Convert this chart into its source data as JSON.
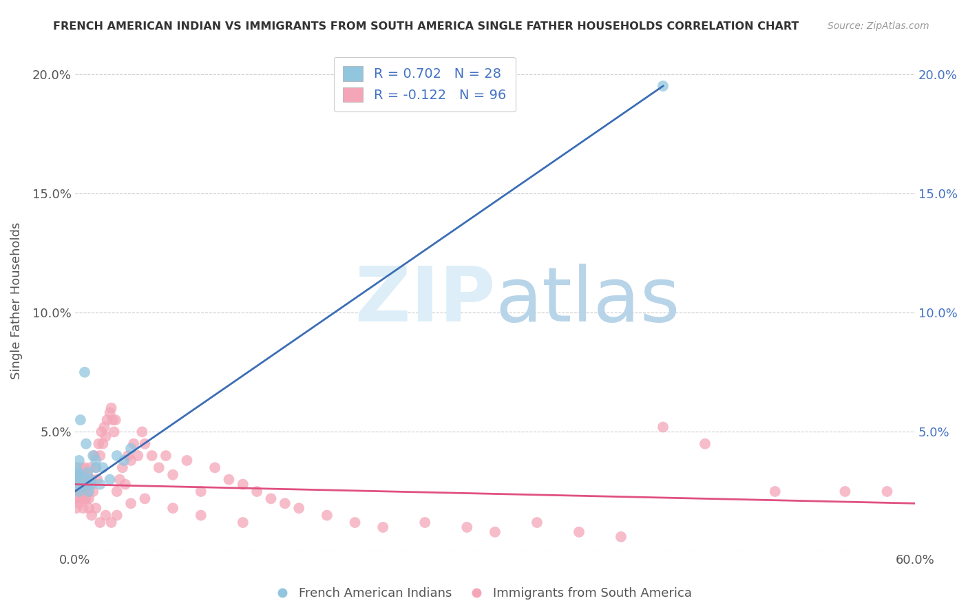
{
  "title": "FRENCH AMERICAN INDIAN VS IMMIGRANTS FROM SOUTH AMERICA SINGLE FATHER HOUSEHOLDS CORRELATION CHART",
  "source": "Source: ZipAtlas.com",
  "ylabel": "Single Father Households",
  "xlabel": "",
  "watermark_zip": "ZIP",
  "watermark_atlas": "atlas",
  "xlim": [
    0.0,
    0.6
  ],
  "ylim": [
    0.0,
    0.21
  ],
  "xticks": [
    0.0,
    0.1,
    0.2,
    0.3,
    0.4,
    0.5,
    0.6
  ],
  "xticklabels": [
    "0.0%",
    "",
    "",
    "",
    "",
    "",
    "60.0%"
  ],
  "yticks": [
    0.0,
    0.05,
    0.1,
    0.15,
    0.2
  ],
  "yticklabels_left": [
    "",
    "5.0%",
    "10.0%",
    "15.0%",
    "20.0%"
  ],
  "yticklabels_right": [
    "",
    "5.0%",
    "10.0%",
    "15.0%",
    "20.0%"
  ],
  "blue_R": 0.702,
  "blue_N": 28,
  "pink_R": -0.122,
  "pink_N": 96,
  "blue_color": "#92c5de",
  "pink_color": "#f4a6b8",
  "blue_line_color": "#3b6db5",
  "pink_line_color": "#e05080",
  "legend1_label": "French American Indians",
  "legend2_label": "Immigrants from South America",
  "blue_scatter_x": [
    0.001,
    0.001,
    0.001,
    0.002,
    0.002,
    0.003,
    0.003,
    0.003,
    0.004,
    0.005,
    0.006,
    0.007,
    0.008,
    0.009,
    0.01,
    0.01,
    0.011,
    0.012,
    0.013,
    0.015,
    0.015,
    0.018,
    0.02,
    0.025,
    0.03,
    0.035,
    0.04,
    0.42
  ],
  "blue_scatter_y": [
    0.032,
    0.035,
    0.028,
    0.03,
    0.033,
    0.025,
    0.032,
    0.038,
    0.055,
    0.027,
    0.03,
    0.075,
    0.045,
    0.033,
    0.025,
    0.028,
    0.03,
    0.028,
    0.04,
    0.035,
    0.038,
    0.028,
    0.035,
    0.03,
    0.04,
    0.038,
    0.043,
    0.195
  ],
  "pink_scatter_x": [
    0.001,
    0.001,
    0.002,
    0.002,
    0.003,
    0.003,
    0.004,
    0.004,
    0.005,
    0.005,
    0.006,
    0.006,
    0.007,
    0.007,
    0.008,
    0.008,
    0.009,
    0.009,
    0.01,
    0.01,
    0.011,
    0.012,
    0.013,
    0.014,
    0.015,
    0.016,
    0.017,
    0.018,
    0.019,
    0.02,
    0.021,
    0.022,
    0.023,
    0.025,
    0.026,
    0.027,
    0.028,
    0.029,
    0.03,
    0.032,
    0.034,
    0.036,
    0.038,
    0.04,
    0.042,
    0.045,
    0.048,
    0.05,
    0.055,
    0.06,
    0.065,
    0.07,
    0.08,
    0.09,
    0.1,
    0.11,
    0.12,
    0.13,
    0.14,
    0.15,
    0.16,
    0.18,
    0.2,
    0.22,
    0.25,
    0.28,
    0.3,
    0.33,
    0.36,
    0.39,
    0.42,
    0.45,
    0.5,
    0.55,
    0.58,
    0.001,
    0.002,
    0.003,
    0.004,
    0.005,
    0.006,
    0.007,
    0.008,
    0.009,
    0.01,
    0.012,
    0.015,
    0.018,
    0.022,
    0.026,
    0.03,
    0.04,
    0.05,
    0.07,
    0.09,
    0.12
  ],
  "pink_scatter_y": [
    0.028,
    0.022,
    0.025,
    0.032,
    0.02,
    0.03,
    0.025,
    0.035,
    0.022,
    0.028,
    0.025,
    0.032,
    0.028,
    0.035,
    0.022,
    0.03,
    0.025,
    0.032,
    0.028,
    0.022,
    0.035,
    0.03,
    0.025,
    0.04,
    0.035,
    0.03,
    0.045,
    0.04,
    0.05,
    0.045,
    0.052,
    0.048,
    0.055,
    0.058,
    0.06,
    0.055,
    0.05,
    0.055,
    0.025,
    0.03,
    0.035,
    0.028,
    0.04,
    0.038,
    0.045,
    0.04,
    0.05,
    0.045,
    0.04,
    0.035,
    0.04,
    0.032,
    0.038,
    0.025,
    0.035,
    0.03,
    0.028,
    0.025,
    0.022,
    0.02,
    0.018,
    0.015,
    0.012,
    0.01,
    0.012,
    0.01,
    0.008,
    0.012,
    0.008,
    0.006,
    0.052,
    0.045,
    0.025,
    0.025,
    0.025,
    0.018,
    0.022,
    0.025,
    0.028,
    0.032,
    0.018,
    0.022,
    0.025,
    0.028,
    0.018,
    0.015,
    0.018,
    0.012,
    0.015,
    0.012,
    0.015,
    0.02,
    0.022,
    0.018,
    0.015,
    0.012
  ],
  "blue_line_x": [
    0.0,
    0.42
  ],
  "blue_line_y": [
    0.025,
    0.195
  ],
  "pink_line_x": [
    0.0,
    0.6
  ],
  "pink_line_y": [
    0.028,
    0.02
  ]
}
